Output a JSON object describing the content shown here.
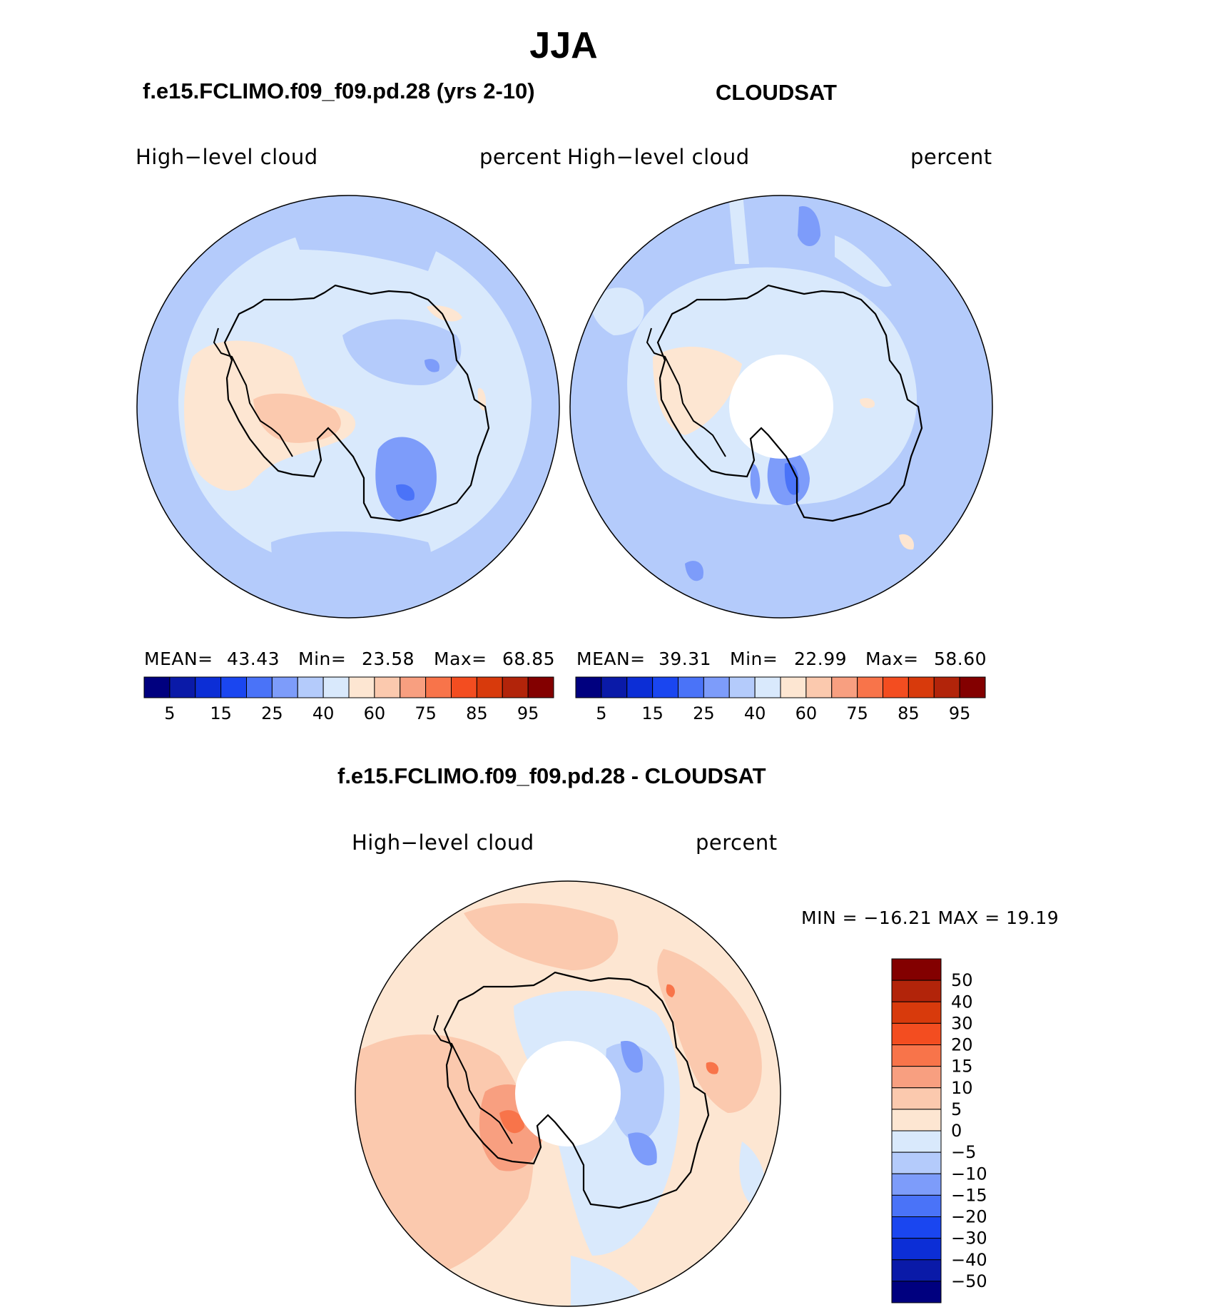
{
  "figure": {
    "title": "JJA",
    "left_case": "f.e15.FCLIMO.f09_f09.pd.28 (yrs 2-10)",
    "right_case": "CLOUDSAT",
    "diff_case": "f.e15.FCLIMO.f09_f09.pd.28 - CLOUDSAT"
  },
  "panels": {
    "model": {
      "variable": "High−level  cloud",
      "units": "percent",
      "stats": {
        "mean_label": "MEAN=",
        "mean": "43.43",
        "min_label": "Min=",
        "min": "23.58",
        "max_label": "Max=",
        "max": "68.85"
      }
    },
    "obs": {
      "variable": "High−level  cloud",
      "units": "percent",
      "stats": {
        "mean_label": "MEAN=",
        "mean": "39.31",
        "min_label": "Min=",
        "min": "22.99",
        "max_label": "Max=",
        "max": "58.60"
      }
    },
    "diff": {
      "variable": "High−level  cloud",
      "units": "percent",
      "minmax": "MIN =  −16.21  MAX =    19.19"
    }
  },
  "colorbars": {
    "absolute": {
      "colors": [
        "#00007f",
        "#0a1aa8",
        "#0c2ed6",
        "#1a46f0",
        "#4a73f8",
        "#7d9cfa",
        "#b4cbfb",
        "#d9e9fc",
        "#fde6d2",
        "#fbc9ae",
        "#f89f80",
        "#f8744a",
        "#f34d20",
        "#d83a0c",
        "#b2240a",
        "#830000"
      ],
      "tick_labels": [
        "5",
        "15",
        "25",
        "40",
        "60",
        "75",
        "85",
        "95"
      ]
    },
    "difference": {
      "colors": [
        "#830000",
        "#b2240a",
        "#d83a0c",
        "#f34d20",
        "#f8744a",
        "#f89f80",
        "#fbc9ae",
        "#fde6d2",
        "#d9e9fc",
        "#b4cbfb",
        "#7d9cfa",
        "#4a73f8",
        "#1a46f0",
        "#0c2ed6",
        "#0a1aa8",
        "#00007f"
      ],
      "tick_labels": [
        "50",
        "40",
        "30",
        "20",
        "15",
        "10",
        "5",
        "0",
        "−5",
        "−10",
        "−15",
        "−20",
        "−30",
        "−40",
        "−50"
      ]
    }
  }
}
